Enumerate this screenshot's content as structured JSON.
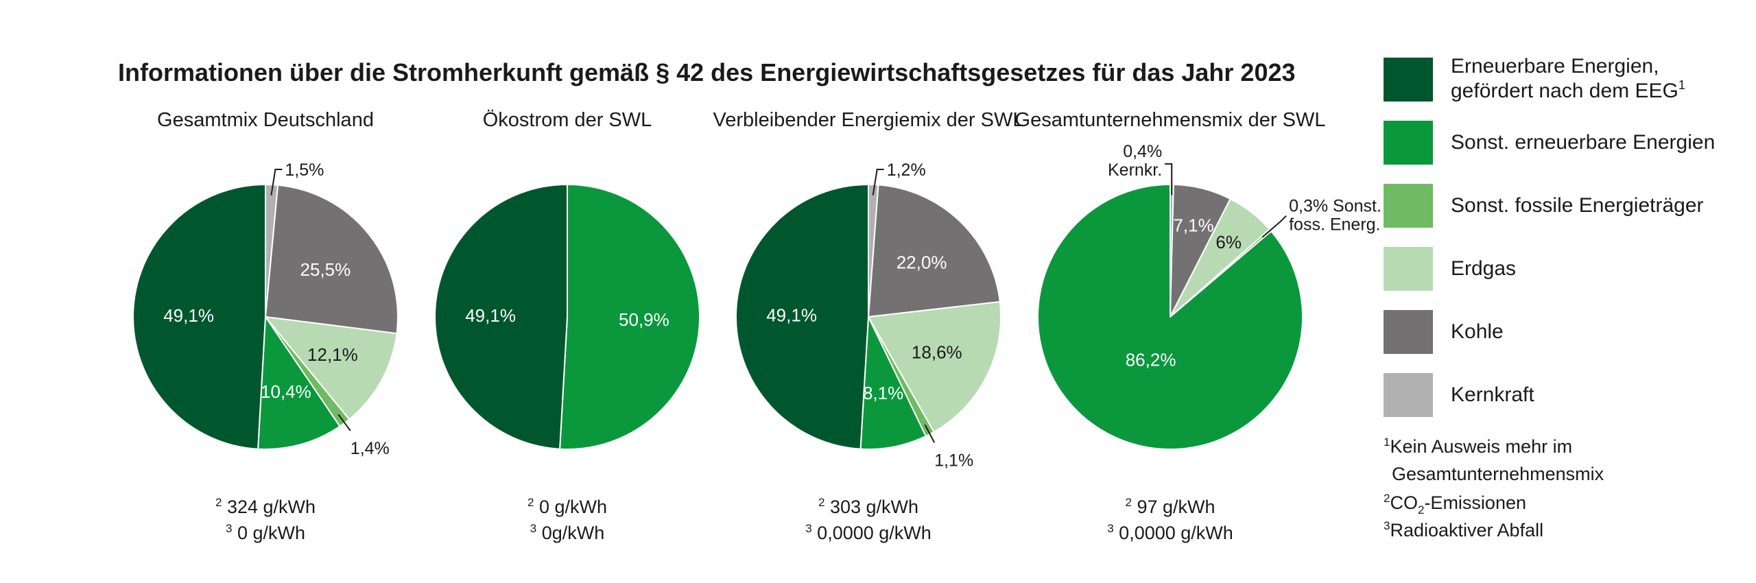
{
  "title": "Informationen über die Stromherkunft gemäß § 42 des Energiewirtschaftsgesetzes für das Jahr 2023",
  "colors": {
    "eeg": "#00572e",
    "renew": "#0b983d",
    "fossil": "#6fba62",
    "gas": "#b7dab3",
    "coal": "#737172",
    "nuclear": "#b1b1b1",
    "text": "#1a1a1a",
    "label_light": "#ffffff"
  },
  "legend": {
    "items": [
      {
        "key": "eeg",
        "lines": [
          "Erneuerbare Energien,",
          "gefördert nach dem EEG"
        ],
        "sup": "1"
      },
      {
        "key": "renew",
        "lines": [
          "Sonst. erneuerbare Energien"
        ]
      },
      {
        "key": "fossil",
        "lines": [
          "Sonst. fossile Energieträger"
        ]
      },
      {
        "key": "gas",
        "lines": [
          "Erdgas"
        ]
      },
      {
        "key": "coal",
        "lines": [
          "Kohle"
        ]
      },
      {
        "key": "nuclear",
        "lines": [
          "Kernkraft"
        ]
      }
    ],
    "footnotes": [
      {
        "sup": "1",
        "text": "Kein Ausweis mehr im"
      },
      {
        "sup": "",
        "text": "Gesamtunternehmensmix"
      },
      {
        "sup": "2",
        "text": "CO",
        "sub": "2",
        "tail": "-Emissionen"
      },
      {
        "sup": "3",
        "text": "Radioaktiver Abfall"
      }
    ]
  },
  "chart_data": [
    {
      "type": "pie",
      "title": "Gesamtmix Deutschland",
      "slices": [
        {
          "key": "nuclear",
          "value": 1.5,
          "label": "1,5%"
        },
        {
          "key": "coal",
          "value": 25.5,
          "label": "25,5%"
        },
        {
          "key": "gas",
          "value": 12.1,
          "label": "12,1%"
        },
        {
          "key": "fossil",
          "value": 1.4,
          "label": "1,4%"
        },
        {
          "key": "renew",
          "value": 10.4,
          "label": "10,4%"
        },
        {
          "key": "eeg",
          "value": 49.1,
          "label": "49,1%"
        }
      ],
      "notes": [
        {
          "sup": "2",
          "text": "324 g/kWh"
        },
        {
          "sup": "3",
          "text": "0 g/kWh"
        }
      ]
    },
    {
      "type": "pie",
      "title": "Ökostrom der SWL",
      "slices": [
        {
          "key": "renew",
          "value": 50.9,
          "label": "50,9%"
        },
        {
          "key": "eeg",
          "value": 49.1,
          "label": "49,1%"
        }
      ],
      "notes": [
        {
          "sup": "2",
          "text": "0 g/kWh"
        },
        {
          "sup": "3",
          "text": "0g/kWh"
        }
      ]
    },
    {
      "type": "pie",
      "title": "Verbleibender Energiemix der SWL",
      "slices": [
        {
          "key": "nuclear",
          "value": 1.2,
          "label": "1,2%"
        },
        {
          "key": "coal",
          "value": 22.0,
          "label": "22,0%"
        },
        {
          "key": "gas",
          "value": 18.6,
          "label": "18,6%"
        },
        {
          "key": "fossil",
          "value": 1.1,
          "label": "1,1%"
        },
        {
          "key": "renew",
          "value": 8.1,
          "label": "8,1%"
        },
        {
          "key": "eeg",
          "value": 49.1,
          "label": "49,1%"
        }
      ],
      "notes": [
        {
          "sup": "2",
          "text": "303 g/kWh"
        },
        {
          "sup": "3",
          "text": "0,0000 g/kWh"
        }
      ]
    },
    {
      "type": "pie",
      "title": "Gesamtunternehmensmix der SWL",
      "slices": [
        {
          "key": "nuclear",
          "value": 0.4,
          "label": "0,4%",
          "sublabel": "Kernkr."
        },
        {
          "key": "coal",
          "value": 7.1,
          "label": "7,1%"
        },
        {
          "key": "gas",
          "value": 6,
          "label": "6%"
        },
        {
          "key": "fossil",
          "value": 0.3,
          "label": "0,3% Sonst.",
          "sublabel": "foss. Energ."
        },
        {
          "key": "renew",
          "value": 86.2,
          "label": "86,2%"
        }
      ],
      "notes": [
        {
          "sup": "2",
          "text": "97 g/kWh"
        },
        {
          "sup": "3",
          "text": "0,0000 g/kWh"
        }
      ]
    }
  ]
}
